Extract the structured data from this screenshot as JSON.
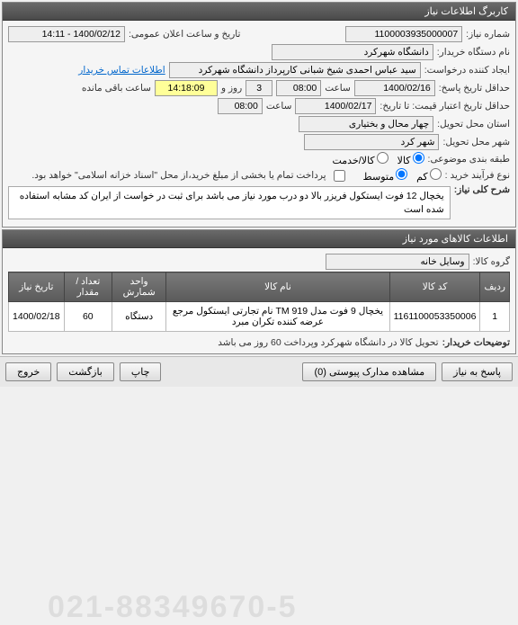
{
  "panel1_title": "کاربرگ اطلاعات نیاز",
  "labels": {
    "need_no": "شماره نیاز:",
    "announce": "تاریخ و ساعت اعلان عمومی:",
    "buyer_org": "نام دستگاه خریدار:",
    "creator": "ایجاد کننده درخواست:",
    "contact": "اطلاعات تماس خریدار",
    "deadline": "حداقل تاریخ پاسخ:",
    "sa3at": "ساعت",
    "rooz_va": "روز و",
    "remain": "ساعت باقی مانده",
    "validity": "حداقل تاریخ اعتبار قیمت: تا تاریخ:",
    "province": "استان محل تحویل:",
    "city": "شهر محل تحویل:",
    "grouping": "طبقه بندی موضوعی:",
    "goods": "کالا",
    "service": "کالا/خدمت",
    "process": "نوع فرآیند خرید :",
    "small": "کم",
    "medium": "متوسط",
    "pay_desc": "پرداخت تمام یا بخشی از مبلغ خرید،از محل \"اسناد خزانه اسلامی\" خواهد بود.",
    "general_title": "شرح کلی نیاز:",
    "goods_info": "اطلاعات کالاهای مورد نیاز",
    "goods_group": "گروه کالا:",
    "buyer_notes_lbl": "توضیحات خریدار:"
  },
  "values": {
    "need_no": "1100003935000007",
    "announce": "1400/02/12 - 14:11",
    "buyer_org": "دانشگاه شهرکرد",
    "creator": "سید عباس احمدی شیخ شبانی کارپرداز دانشگاه شهرکرد",
    "deadline_date": "1400/02/16",
    "deadline_time": "08:00",
    "days": "3",
    "countdown": "14:18:09",
    "validity_date": "1400/02/17",
    "validity_time": "08:00",
    "province": "چهار محال و بختیاری",
    "city": "شهر کرد",
    "general_desc": "یخچال 12 فوت ایستکول فریزر بالا دو درب مورد نیاز  می باشد برای ثبت در خواست از ایران کد مشابه استفاده شده است",
    "goods_group": "وسایل خانه",
    "buyer_notes": "تحویل کالا در دانشگاه شهرکرد وپرداخت 60 روز می باشد"
  },
  "table": {
    "headers": [
      "ردیف",
      "کد کالا",
      "نام کالا",
      "واحد شمارش",
      "تعداد / مقدار",
      "تاریخ نیاز"
    ],
    "rows": [
      [
        "1",
        "1161100053350006",
        "یخچال 9 فوت مدل TM 919 نام تجارتی ایستکول مرجع عرضه کننده تکران مبرد",
        "دستگاه",
        "60",
        "1400/02/18"
      ]
    ]
  },
  "buttons": {
    "reply": "پاسخ به نیاز",
    "attach": "مشاهده مدارک پیوستی (0)",
    "print": "چاپ",
    "back": "بازگشت",
    "exit": "خروج"
  },
  "watermark": "021-88349670-5"
}
